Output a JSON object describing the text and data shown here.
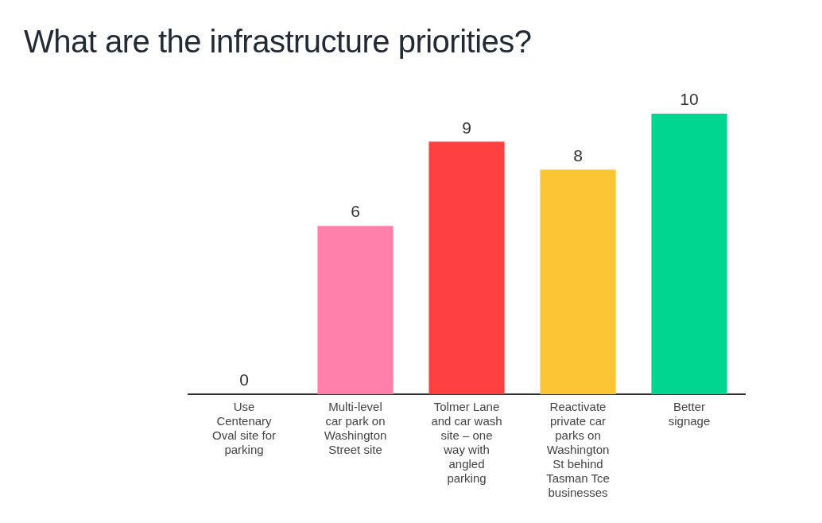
{
  "chart_data": {
    "type": "bar",
    "title": "What are the infrastructure priorities?",
    "categories": [
      "Use Centenary Oval site for parking",
      "Multi-level car park on Washington Street site",
      "Tolmer Lane and car wash site – one way with angled parking",
      "Reactivate private car parks on Washington St behind Tasman Tce businesses",
      "Better signage"
    ],
    "values": [
      0,
      6,
      9,
      8,
      10
    ],
    "colors": [
      "#ff80ab",
      "#ff80ab",
      "#ff4040",
      "#fbc536",
      "#00d68f"
    ],
    "data_labels": true,
    "grid": false,
    "legend": false,
    "tick_labels": "x"
  }
}
